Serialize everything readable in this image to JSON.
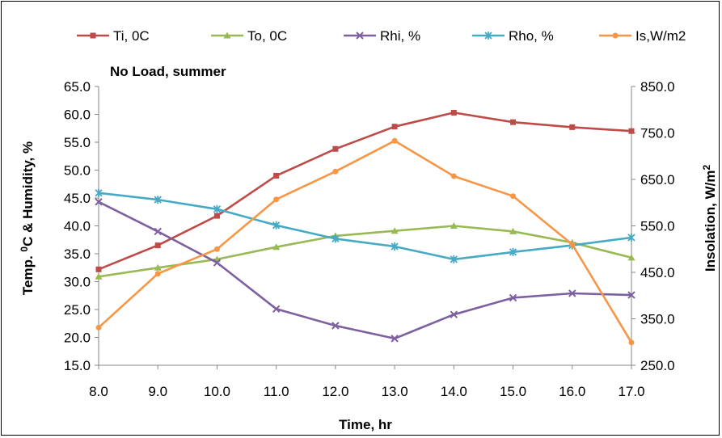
{
  "chart_data": {
    "type": "line",
    "subtitle": "No Load, summer",
    "xlabel": "Time, hr",
    "ylabel_left": {
      "prefix": "Temp. ",
      "sup": "0",
      "suffix": "C & Humidity, %"
    },
    "ylabel_right": {
      "prefix": "Insolation, W/m",
      "sup": "2"
    },
    "x": [
      8.0,
      9.0,
      10.0,
      11.0,
      12.0,
      13.0,
      14.0,
      15.0,
      16.0,
      17.0
    ],
    "x_ticks": [
      "8.0",
      "9.0",
      "10.0",
      "11.0",
      "12.0",
      "13.0",
      "14.0",
      "15.0",
      "16.0",
      "17.0"
    ],
    "xlim": [
      8.0,
      17.0
    ],
    "ylim_left": [
      15.0,
      65.0
    ],
    "y_ticks_left": [
      "15.0",
      "20.0",
      "25.0",
      "30.0",
      "35.0",
      "40.0",
      "45.0",
      "50.0",
      "55.0",
      "60.0",
      "65.0"
    ],
    "ylim_right": [
      250.0,
      850.0
    ],
    "y_ticks_right": [
      "250.0",
      "350.0",
      "450.0",
      "550.0",
      "650.0",
      "750.0",
      "850.0"
    ],
    "grid": false,
    "legend_position": "top",
    "series": [
      {
        "name": "Ti, 0C",
        "axis": "left",
        "color": "#be4b48",
        "marker": "square",
        "values": [
          32.2,
          36.5,
          41.8,
          49.0,
          53.8,
          57.8,
          60.3,
          58.6,
          57.7,
          57.0
        ]
      },
      {
        "name": "To, 0C",
        "axis": "left",
        "color": "#98b954",
        "marker": "triangle",
        "values": [
          30.9,
          32.5,
          34.0,
          36.2,
          38.2,
          39.1,
          40.0,
          39.0,
          37.0,
          34.3
        ]
      },
      {
        "name": "Rhi, %",
        "axis": "left",
        "color": "#7d60a0",
        "marker": "x",
        "values": [
          44.3,
          39.0,
          33.4,
          25.1,
          22.1,
          19.8,
          24.1,
          27.1,
          27.9,
          27.6
        ]
      },
      {
        "name": "Rho, %",
        "axis": "left",
        "color": "#46aac5",
        "marker": "star",
        "values": [
          45.9,
          44.7,
          43.0,
          40.1,
          37.7,
          36.3,
          34.0,
          35.3,
          36.5,
          37.9
        ]
      },
      {
        "name": "Is,W/m2",
        "axis": "right",
        "color": "#f79646",
        "marker": "circle",
        "values": [
          331,
          447,
          500,
          607,
          667,
          733,
          657,
          614,
          510,
          299
        ]
      }
    ]
  }
}
